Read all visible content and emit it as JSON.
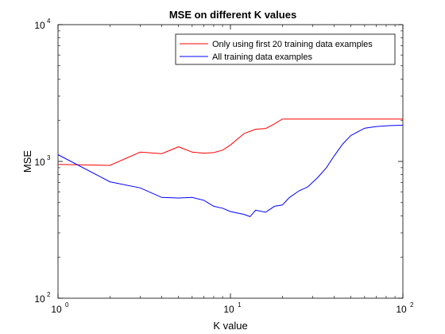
{
  "chart_data": {
    "type": "line",
    "title": "MSE on different K values",
    "xlabel": "K value",
    "ylabel": "MSE",
    "xscale": "log",
    "yscale": "log",
    "xlim": [
      1,
      100
    ],
    "ylim": [
      100,
      10000
    ],
    "grid": false,
    "legend_position": "top-right",
    "x_ticks": [
      {
        "value": 1,
        "label_base": "10",
        "label_exp": "0"
      },
      {
        "value": 10,
        "label_base": "10",
        "label_exp": "1"
      },
      {
        "value": 100,
        "label_base": "10",
        "label_exp": "2"
      }
    ],
    "y_ticks": [
      {
        "value": 100,
        "label_base": "10",
        "label_exp": "2"
      },
      {
        "value": 1000,
        "label_base": "10",
        "label_exp": "3"
      },
      {
        "value": 10000,
        "label_base": "10",
        "label_exp": "4"
      }
    ],
    "series": [
      {
        "name": "Only using first 20 training data examples",
        "color": "#ff0000",
        "points": [
          [
            1,
            950
          ],
          [
            2,
            935
          ],
          [
            3,
            1170
          ],
          [
            4,
            1140
          ],
          [
            5,
            1280
          ],
          [
            6,
            1170
          ],
          [
            7,
            1150
          ],
          [
            8,
            1160
          ],
          [
            9,
            1210
          ],
          [
            10,
            1320
          ],
          [
            12,
            1600
          ],
          [
            14,
            1720
          ],
          [
            16,
            1740
          ],
          [
            18,
            1880
          ],
          [
            20,
            2040
          ],
          [
            30,
            2040
          ],
          [
            50,
            2040
          ],
          [
            100,
            2040
          ]
        ]
      },
      {
        "name": "All training data examples",
        "color": "#0000ff",
        "points": [
          [
            1,
            1120
          ],
          [
            2,
            710
          ],
          [
            3,
            640
          ],
          [
            4,
            545
          ],
          [
            5,
            540
          ],
          [
            6,
            545
          ],
          [
            7,
            520
          ],
          [
            8,
            470
          ],
          [
            9,
            455
          ],
          [
            10,
            430
          ],
          [
            12,
            410
          ],
          [
            13,
            395
          ],
          [
            14,
            440
          ],
          [
            16,
            425
          ],
          [
            18,
            470
          ],
          [
            20,
            480
          ],
          [
            22,
            545
          ],
          [
            25,
            610
          ],
          [
            28,
            650
          ],
          [
            32,
            760
          ],
          [
            36,
            900
          ],
          [
            40,
            1100
          ],
          [
            45,
            1350
          ],
          [
            50,
            1550
          ],
          [
            60,
            1750
          ],
          [
            70,
            1800
          ],
          [
            85,
            1830
          ],
          [
            100,
            1840
          ]
        ]
      }
    ]
  }
}
